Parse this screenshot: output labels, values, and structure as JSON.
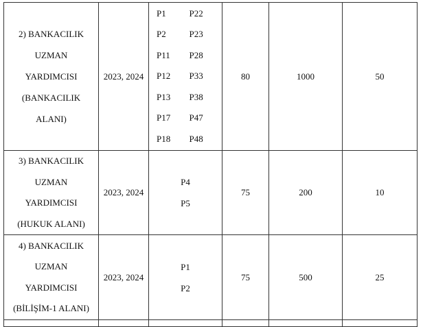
{
  "rows": [
    {
      "name_lines": [
        "2) BANKACILIK",
        "UZMAN",
        "YARDIMCISI",
        "(BANKACILIK",
        "ALANI)"
      ],
      "years": "2023, 2024",
      "codes": [
        "P1",
        "P22",
        "P2",
        "P23",
        "P11",
        "P28",
        "P12",
        "P33",
        "P13",
        "P38",
        "P17",
        "P47",
        "P18",
        "P48"
      ],
      "col4": "80",
      "col5": "1000",
      "col6": "50"
    },
    {
      "name_lines": [
        "3) BANKACILIK",
        "UZMAN",
        "YARDIMCISI",
        "(HUKUK ALANI)"
      ],
      "years": "2023, 2024",
      "codes": [
        "P4",
        "P5"
      ],
      "col4": "75",
      "col5": "200",
      "col6": "10"
    },
    {
      "name_lines": [
        "4) BANKACILIK",
        "UZMAN",
        "YARDIMCISI",
        "(BİLİŞİM-1 ALANI)"
      ],
      "years": "2023, 2024",
      "codes": [
        "P1",
        "P2"
      ],
      "col4": "75",
      "col5": "500",
      "col6": "25"
    }
  ]
}
